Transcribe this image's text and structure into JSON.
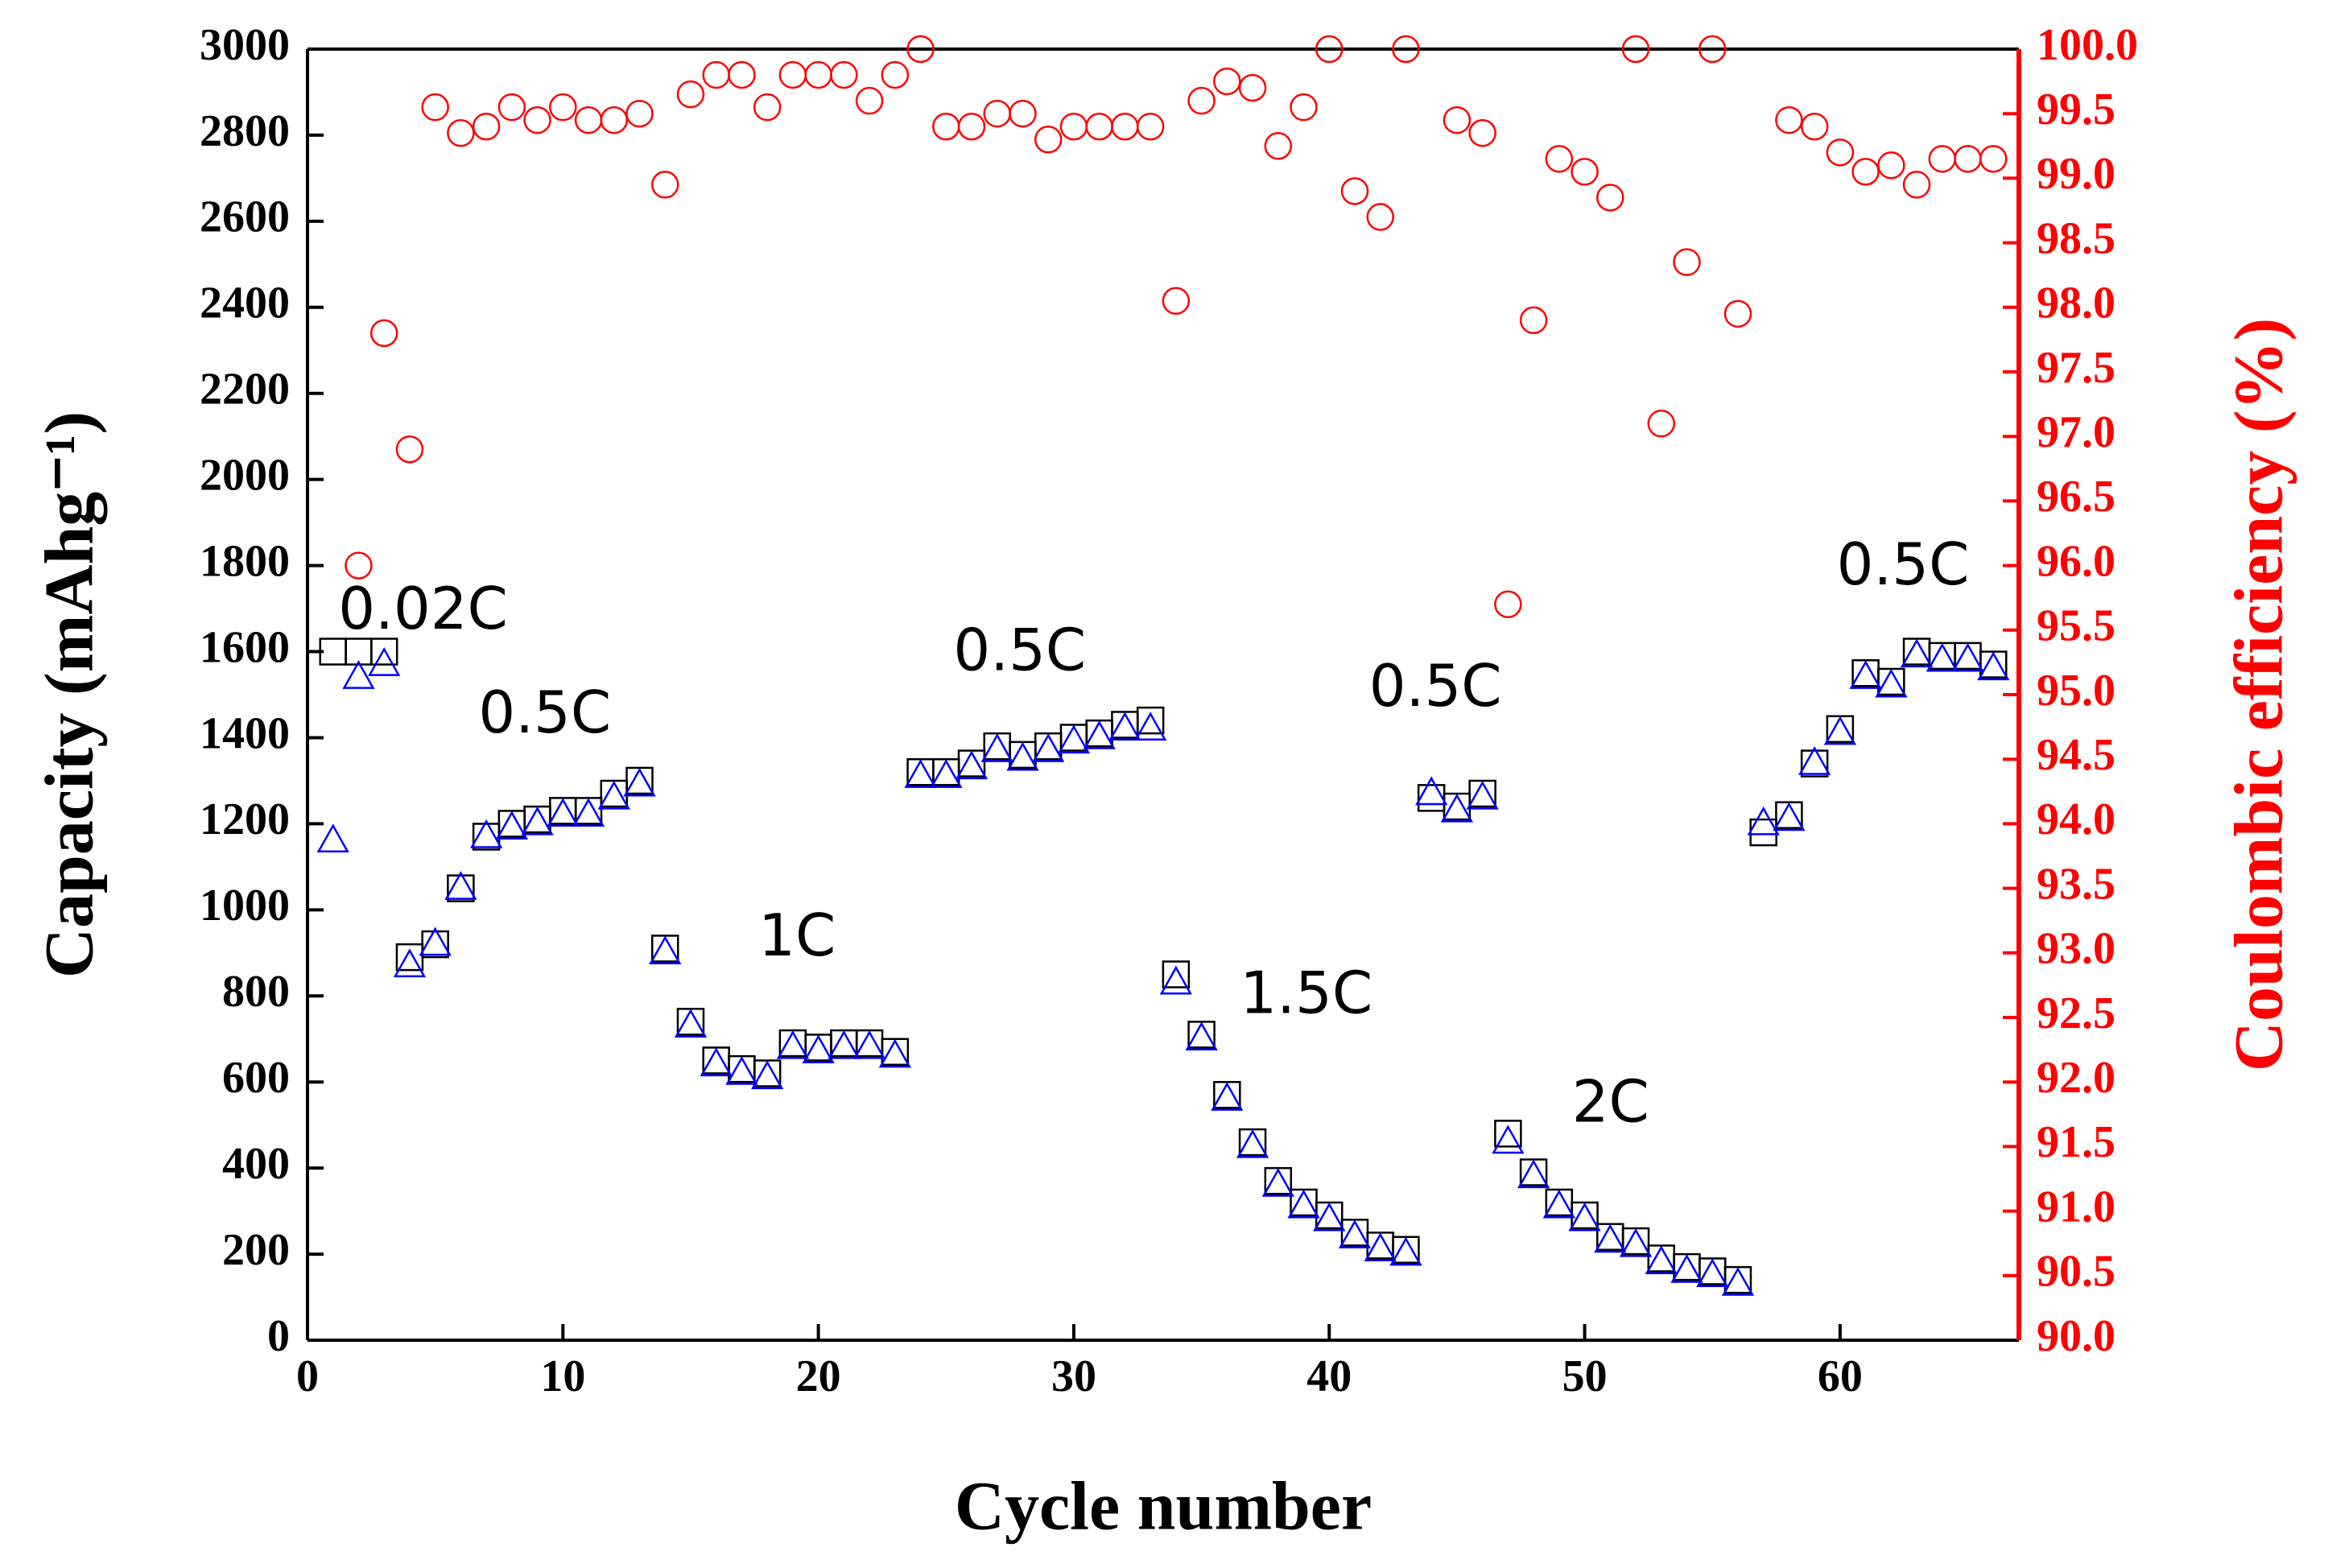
{
  "chart_data": {
    "type": "scatter",
    "xlabel": "Cycle number",
    "ylabel": "Capacity (mAhg⁻¹)",
    "y2label": "Coulombic efficiency (%)",
    "x": [
      1,
      2,
      3,
      4,
      5,
      6,
      7,
      8,
      9,
      10,
      11,
      12,
      13,
      14,
      15,
      16,
      17,
      18,
      19,
      20,
      21,
      22,
      23,
      24,
      25,
      26,
      27,
      28,
      29,
      30,
      31,
      32,
      33,
      34,
      35,
      36,
      37,
      38,
      39,
      40,
      41,
      42,
      43,
      44,
      45,
      46,
      47,
      48,
      49,
      50,
      51,
      52,
      53,
      54,
      55,
      56,
      57,
      58,
      59,
      60,
      61,
      62,
      63,
      64,
      65,
      66
    ],
    "series": [
      {
        "color": "#000000",
        "marker": "square",
        "values": [
          1600,
          1600,
          1600,
          890,
          920,
          1050,
          1170,
          1200,
          1210,
          1230,
          1230,
          1270,
          1300,
          910,
          740,
          650,
          630,
          620,
          690,
          680,
          690,
          690,
          670,
          1320,
          1320,
          1340,
          1380,
          1360,
          1380,
          1400,
          1410,
          1430,
          1440,
          850,
          710,
          570,
          460,
          370,
          320,
          290,
          250,
          220,
          210,
          1260,
          1240,
          1270,
          480,
          390,
          320,
          290,
          240,
          230,
          190,
          170,
          160,
          140,
          1180,
          1220,
          1340,
          1420,
          1550,
          1530,
          1600,
          1590,
          1590,
          1570
        ]
      },
      {
        "color": "#0000ff",
        "marker": "triangle",
        "values": [
          1160,
          1540,
          1570,
          870,
          920,
          1050,
          1170,
          1190,
          1200,
          1220,
          1220,
          1260,
          1290,
          900,
          730,
          640,
          620,
          610,
          680,
          670,
          680,
          680,
          660,
          1310,
          1310,
          1330,
          1370,
          1350,
          1370,
          1390,
          1400,
          1420,
          1420,
          830,
          700,
          560,
          450,
          360,
          310,
          280,
          240,
          210,
          200,
          1270,
          1230,
          1260,
          460,
          380,
          310,
          280,
          230,
          220,
          180,
          160,
          150,
          130,
          1200,
          1210,
          1340,
          1410,
          1540,
          1520,
          1590,
          1580,
          1580,
          1560
        ]
      },
      {
        "color": "#ff0000",
        "marker": "circle",
        "axis": "y2",
        "values": [
          null,
          96.0,
          97.8,
          96.9,
          99.55,
          99.35,
          99.4,
          99.55,
          99.45,
          99.55,
          99.45,
          99.45,
          99.5,
          98.95,
          99.65,
          99.8,
          99.8,
          99.55,
          99.8,
          99.8,
          99.8,
          99.6,
          99.8,
          100,
          99.4,
          99.4,
          99.5,
          99.5,
          99.3,
          99.4,
          99.4,
          99.4,
          99.4,
          98.05,
          99.6,
          99.75,
          99.7,
          99.25,
          99.55,
          100,
          98.9,
          98.7,
          100,
          null,
          99.45,
          99.35,
          95.7,
          97.9,
          99.15,
          99.05,
          98.85,
          100,
          97.1,
          98.35,
          100,
          97.95,
          null,
          99.45,
          99.4,
          99.2,
          99.05,
          99.1,
          98.95,
          99.15,
          99.15,
          99.15
        ]
      }
    ],
    "xlim": [
      0,
      67
    ],
    "xticks": [
      0,
      10,
      20,
      30,
      40,
      50,
      60
    ],
    "ylim": [
      0,
      3000
    ],
    "yticks": [
      0,
      200,
      400,
      600,
      800,
      1000,
      1200,
      1400,
      1600,
      1800,
      2000,
      2200,
      2400,
      2600,
      2800,
      3000
    ],
    "y2lim": [
      90,
      100
    ],
    "y2ticks": [
      {
        "value": 90,
        "label": "90.0"
      },
      90.5,
      {
        "value": 91,
        "label": "91.0"
      },
      91.5,
      {
        "value": 92,
        "label": "92.0"
      },
      92.5,
      {
        "value": 93,
        "label": "93.0"
      },
      93.5,
      {
        "value": 94,
        "label": "94.0"
      },
      94.5,
      {
        "value": 95,
        "label": "95.0"
      },
      95.5,
      {
        "value": 96,
        "label": "96.0"
      },
      96.5,
      {
        "value": 97,
        "label": "97.0"
      },
      97.5,
      {
        "value": 98,
        "label": "98.0"
      },
      98.5,
      {
        "value": 99,
        "label": "99.0"
      },
      99.5,
      {
        "value": 100,
        "label": "100.0"
      }
    ],
    "y2color": "#ff0000",
    "annotations": [
      "0.02C",
      "0.5C",
      "1C",
      "0.5C",
      "1.5C",
      "0.5C",
      "2C",
      "0.5C"
    ]
  }
}
